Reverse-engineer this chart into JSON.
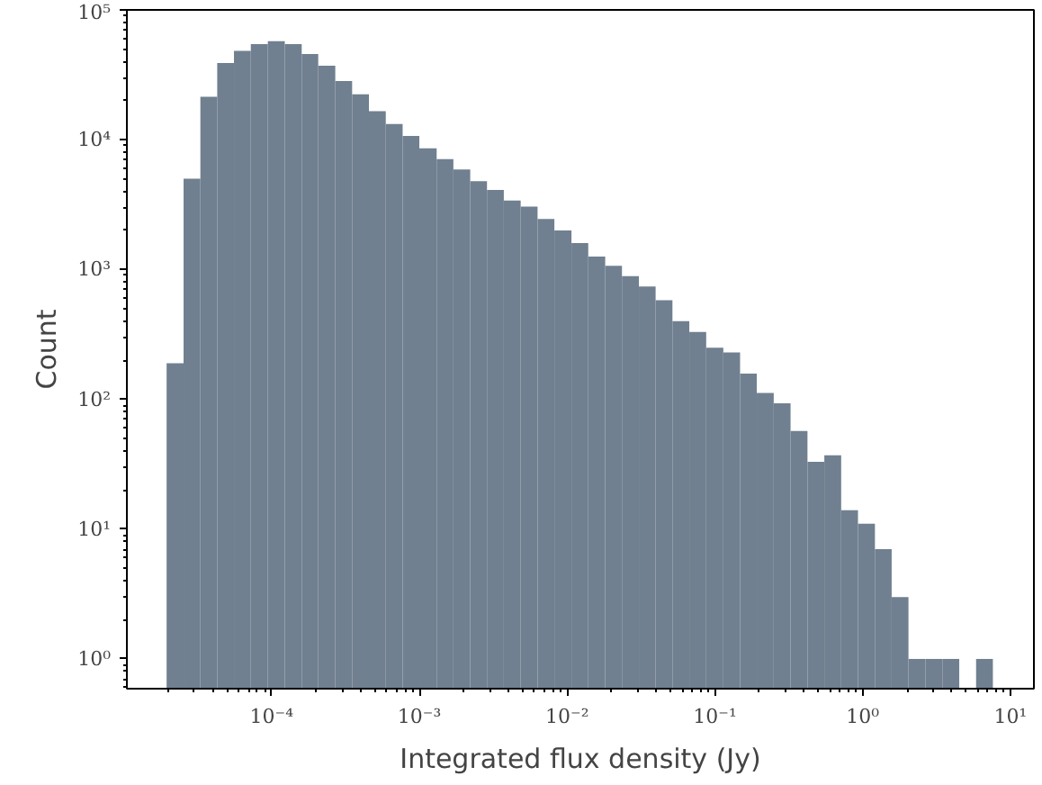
{
  "chart_data": {
    "type": "histogram",
    "xlabel": "Integrated flux density (Jy)",
    "ylabel": "Count",
    "color": "#708090",
    "log": "xy",
    "grid": false,
    "bins": [
      1.95e-05,
      2.54e-05,
      3.3e-05,
      4.29e-05,
      5.57e-05,
      7.24e-05,
      9.44e-05,
      0.000123,
      0.00016,
      0.000207,
      0.00027,
      0.000351,
      0.000456,
      0.000593,
      0.000771,
      0.001,
      0.00131,
      0.0017,
      0.00221,
      0.00287,
      0.00373,
      0.00485,
      0.00631,
      0.0082,
      0.0107,
      0.0139,
      0.0181,
      0.0235,
      0.0306,
      0.0397,
      0.0516,
      0.0671,
      0.0873,
      0.114,
      0.148,
      0.192,
      0.25,
      0.325,
      0.423,
      0.55,
      0.715,
      0.929,
      1.21,
      1.57,
      2.04,
      2.66,
      3.46,
      4.5,
      5.85,
      7.6
    ],
    "values": [
      190,
      5000,
      21400,
      39000,
      48400,
      54500,
      57500,
      54500,
      45800,
      37100,
      28300,
      22400,
      16600,
      13200,
      10700,
      8600,
      7100,
      5900,
      4800,
      4100,
      3400,
      3050,
      2450,
      2000,
      1600,
      1260,
      1070,
      890,
      740,
      580,
      400,
      330,
      250,
      230,
      158,
      112,
      93,
      57,
      33,
      37,
      14,
      11,
      7,
      3,
      1,
      1,
      1,
      null,
      1
    ],
    "xlim": [
      1.05e-05,
      14.4
    ],
    "ylim": [
      0.59,
      100000
    ],
    "xticks": [
      {
        "value": 0.0001,
        "label": "10⁻⁴"
      },
      {
        "value": 0.001,
        "label": "10⁻³"
      },
      {
        "value": 0.01,
        "label": "10⁻²"
      },
      {
        "value": 0.1,
        "label": "10⁻¹"
      },
      {
        "value": 1,
        "label": "10⁰"
      },
      {
        "value": 10,
        "label": "10¹"
      }
    ],
    "yticks": [
      {
        "value": 1,
        "label": "10⁰"
      },
      {
        "value": 10,
        "label": "10¹"
      },
      {
        "value": 100,
        "label": "10²"
      },
      {
        "value": 1000,
        "label": "10³"
      },
      {
        "value": 10000,
        "label": "10⁴"
      },
      {
        "value": 100000,
        "label": "10⁵"
      }
    ]
  }
}
